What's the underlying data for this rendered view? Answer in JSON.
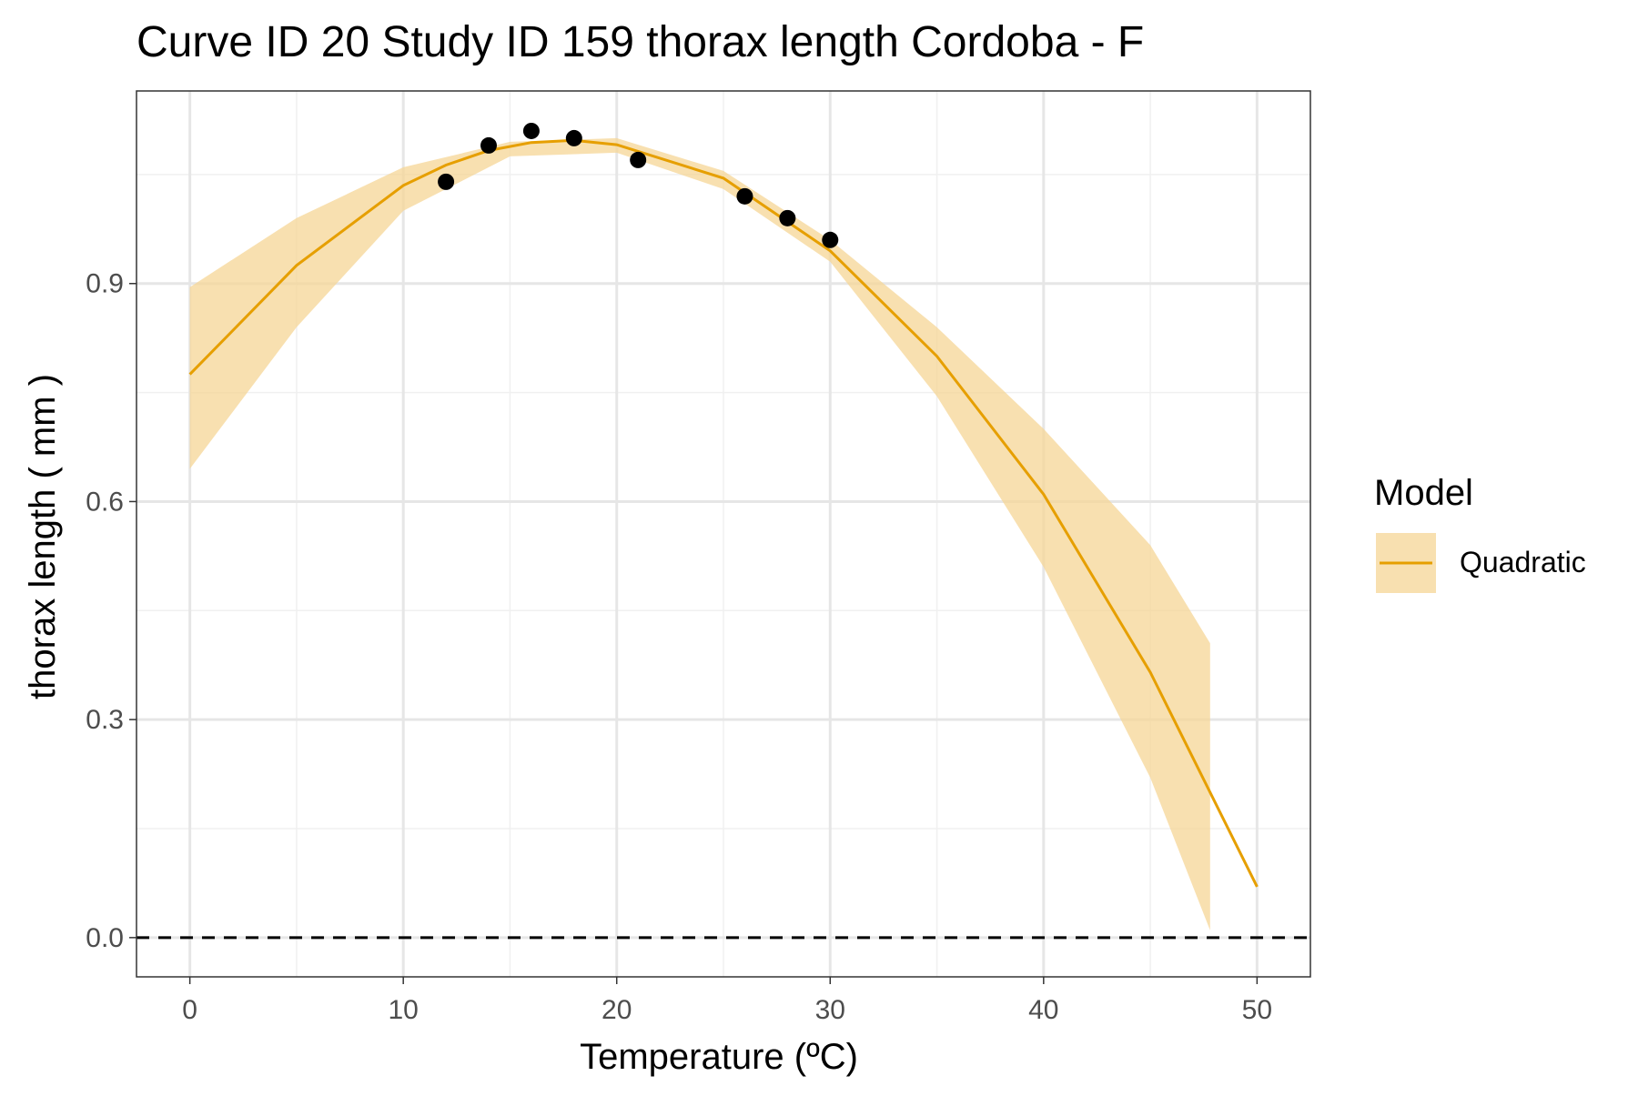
{
  "chart_data": {
    "type": "line",
    "title": "Curve ID 20 Study ID 159 thorax length Cordoba - F",
    "xlabel": "Temperature (ºC)",
    "ylabel": "thorax length ( mm )",
    "xlim": [
      -2.5,
      52.5
    ],
    "ylim": [
      -0.054,
      1.165
    ],
    "x_ticks": [
      0,
      10,
      20,
      30,
      40,
      50
    ],
    "x_tick_labels": [
      "0",
      "10",
      "20",
      "30",
      "40",
      "50"
    ],
    "y_ticks": [
      0.0,
      0.3,
      0.6,
      0.9
    ],
    "y_tick_labels": [
      "0.0",
      "0.3",
      "0.6",
      "0.9"
    ],
    "grid": true,
    "reference_line": {
      "y": 0,
      "style": "dashed"
    },
    "legend": {
      "title": "Model",
      "position": "right",
      "entries": [
        {
          "label": "Quadratic",
          "color": "#E69F00"
        }
      ]
    },
    "series": [
      {
        "name": "Quadratic",
        "type": "line",
        "color": "#E69F00",
        "x": [
          0,
          5,
          10,
          12,
          14,
          16,
          18,
          20,
          25,
          30,
          35,
          40,
          45,
          50
        ],
        "y": [
          0.775,
          0.925,
          1.035,
          1.063,
          1.083,
          1.094,
          1.097,
          1.091,
          1.045,
          0.945,
          0.8,
          0.61,
          0.365,
          0.07
        ]
      },
      {
        "name": "Quadratic",
        "type": "ribbon",
        "color": "#F5D596",
        "x": [
          0,
          5,
          10,
          15,
          20,
          25,
          30,
          35,
          40,
          45,
          47.8
        ],
        "y_lower": [
          0.645,
          0.84,
          1.0,
          1.075,
          1.08,
          1.03,
          0.93,
          0.745,
          0.51,
          0.22,
          0.01
        ],
        "y_upper": [
          0.895,
          0.99,
          1.06,
          1.095,
          1.1,
          1.055,
          0.96,
          0.84,
          0.7,
          0.54,
          0.405
        ]
      },
      {
        "name": "observations",
        "type": "scatter",
        "color": "#000000",
        "x": [
          12,
          14,
          16,
          18,
          21,
          26,
          28,
          30
        ],
        "y": [
          1.04,
          1.09,
          1.11,
          1.1,
          1.07,
          1.02,
          0.99,
          0.96
        ]
      }
    ]
  }
}
